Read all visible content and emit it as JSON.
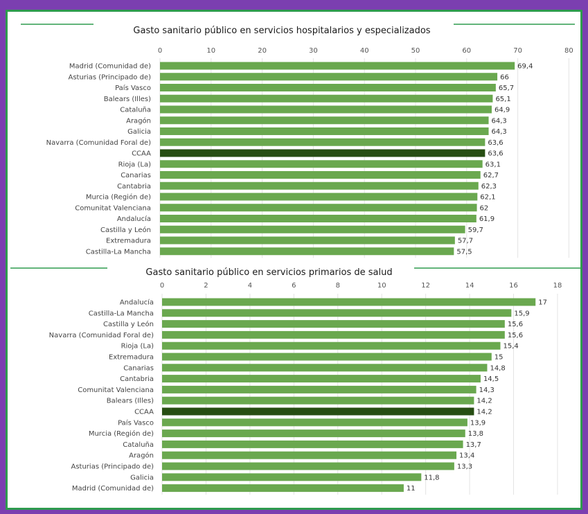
{
  "colors": {
    "page_background": "#7b3fb0",
    "frame_border": "#2e9b4e",
    "bar": "#6aa84f",
    "highlight_bar": "#274e13",
    "title_rule": "#2e9b4e"
  },
  "chart_data": [
    {
      "type": "bar",
      "orientation": "horizontal",
      "title": "Gasto sanitario público en servicios hospitalarios y especializados",
      "xlim": [
        0,
        80
      ],
      "ticks": [
        0,
        10,
        20,
        30,
        40,
        50,
        60,
        70,
        80
      ],
      "tick_labels": [
        "0",
        "10",
        "20",
        "30",
        "40",
        "50",
        "60",
        "70",
        "80"
      ],
      "axis_position": "top",
      "grid": true,
      "highlight": "CCAA",
      "categories": [
        "Madrid (Comunidad de)",
        "Asturias (Principado de)",
        "País Vasco",
        "Balears (Illes)",
        "Cataluña",
        "Aragón",
        "Galicia",
        "Navarra (Comunidad Foral de)",
        "CCAA",
        "Rioja (La)",
        "Canarias",
        "Cantabria",
        "Murcia (Región de)",
        "Comunitat Valenciana",
        "Andalucía",
        "Castilla y León",
        "Extremadura",
        "Castilla-La Mancha"
      ],
      "values": [
        69.4,
        66,
        65.7,
        65.1,
        64.9,
        64.3,
        64.3,
        63.6,
        63.6,
        63.1,
        62.7,
        62.3,
        62.1,
        62,
        61.9,
        59.7,
        57.7,
        57.5
      ],
      "value_labels": [
        "69,4",
        "66",
        "65,7",
        "65,1",
        "64,9",
        "64,3",
        "64,3",
        "63,6",
        "63,6",
        "63,1",
        "62,7",
        "62,3",
        "62,1",
        "62",
        "61,9",
        "59,7",
        "57,7",
        "57,5"
      ]
    },
    {
      "type": "bar",
      "orientation": "horizontal",
      "title": "Gasto sanitario público en servicios primarios de salud",
      "xlim": [
        0,
        18
      ],
      "ticks": [
        0,
        2,
        4,
        6,
        8,
        10,
        12,
        14,
        16,
        18
      ],
      "tick_labels": [
        "0",
        "2",
        "4",
        "6",
        "8",
        "10",
        "12",
        "14",
        "16",
        "18"
      ],
      "axis_position": "top",
      "grid": true,
      "highlight": "CCAA",
      "categories": [
        "Andalucía",
        "Castilla-La Mancha",
        "Castilla y León",
        "Navarra (Comunidad Foral de)",
        "Rioja (La)",
        "Extremadura",
        "Canarias",
        "Cantabria",
        "Comunitat Valenciana",
        "Balears (Illes)",
        "CCAA",
        "País Vasco",
        "Murcia (Región de)",
        "Cataluña",
        "Aragón",
        "Asturias (Principado de)",
        "Galicia",
        "Madrid (Comunidad de)"
      ],
      "values": [
        17,
        15.9,
        15.6,
        15.6,
        15.4,
        15,
        14.8,
        14.5,
        14.3,
        14.2,
        14.2,
        13.9,
        13.8,
        13.7,
        13.4,
        13.3,
        11.8,
        11
      ],
      "value_labels": [
        "17",
        "15,9",
        "15,6",
        "15,6",
        "15,4",
        "15",
        "14,8",
        "14,5",
        "14,3",
        "14,2",
        "14,2",
        "13,9",
        "13,8",
        "13,7",
        "13,4",
        "13,3",
        "11,8",
        "11"
      ]
    }
  ]
}
